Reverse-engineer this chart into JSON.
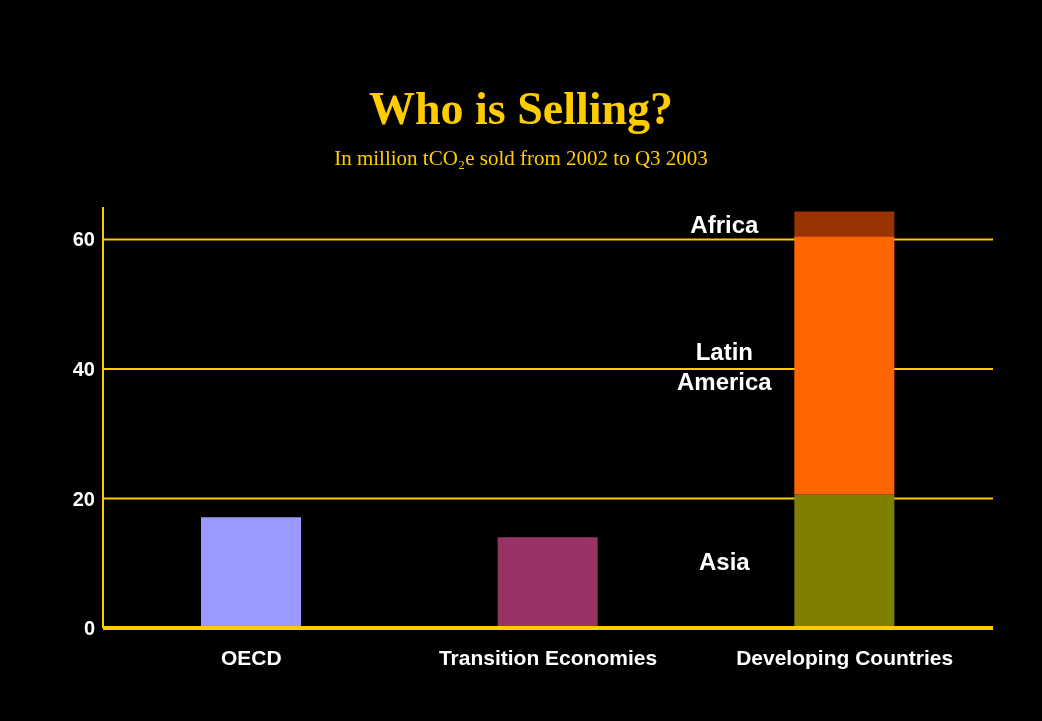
{
  "chart_data": {
    "type": "bar",
    "title": "Who is Selling?",
    "subtitle": "In million tCO₂e sold from 2002 to Q3 2003",
    "categories": [
      "OECD",
      "Transition Economies",
      "Developing Countries"
    ],
    "stacked": true,
    "series": [
      {
        "colors": [
          "#9999ff",
          "#993366",
          null
        ],
        "values": [
          17.1,
          14.0,
          null
        ]
      },
      {
        "name": "Asia",
        "color": "#808000",
        "values": [
          null,
          null,
          20.6
        ]
      },
      {
        "name": "Latin America",
        "color": "#ff6600",
        "values": [
          null,
          null,
          39.9
        ]
      },
      {
        "name": "Africa",
        "color": "#993300",
        "values": [
          null,
          null,
          3.8
        ]
      }
    ],
    "ylim": [
      0,
      65
    ],
    "yticks": [
      0,
      20,
      40,
      60
    ],
    "grid": "y",
    "legend": false
  }
}
